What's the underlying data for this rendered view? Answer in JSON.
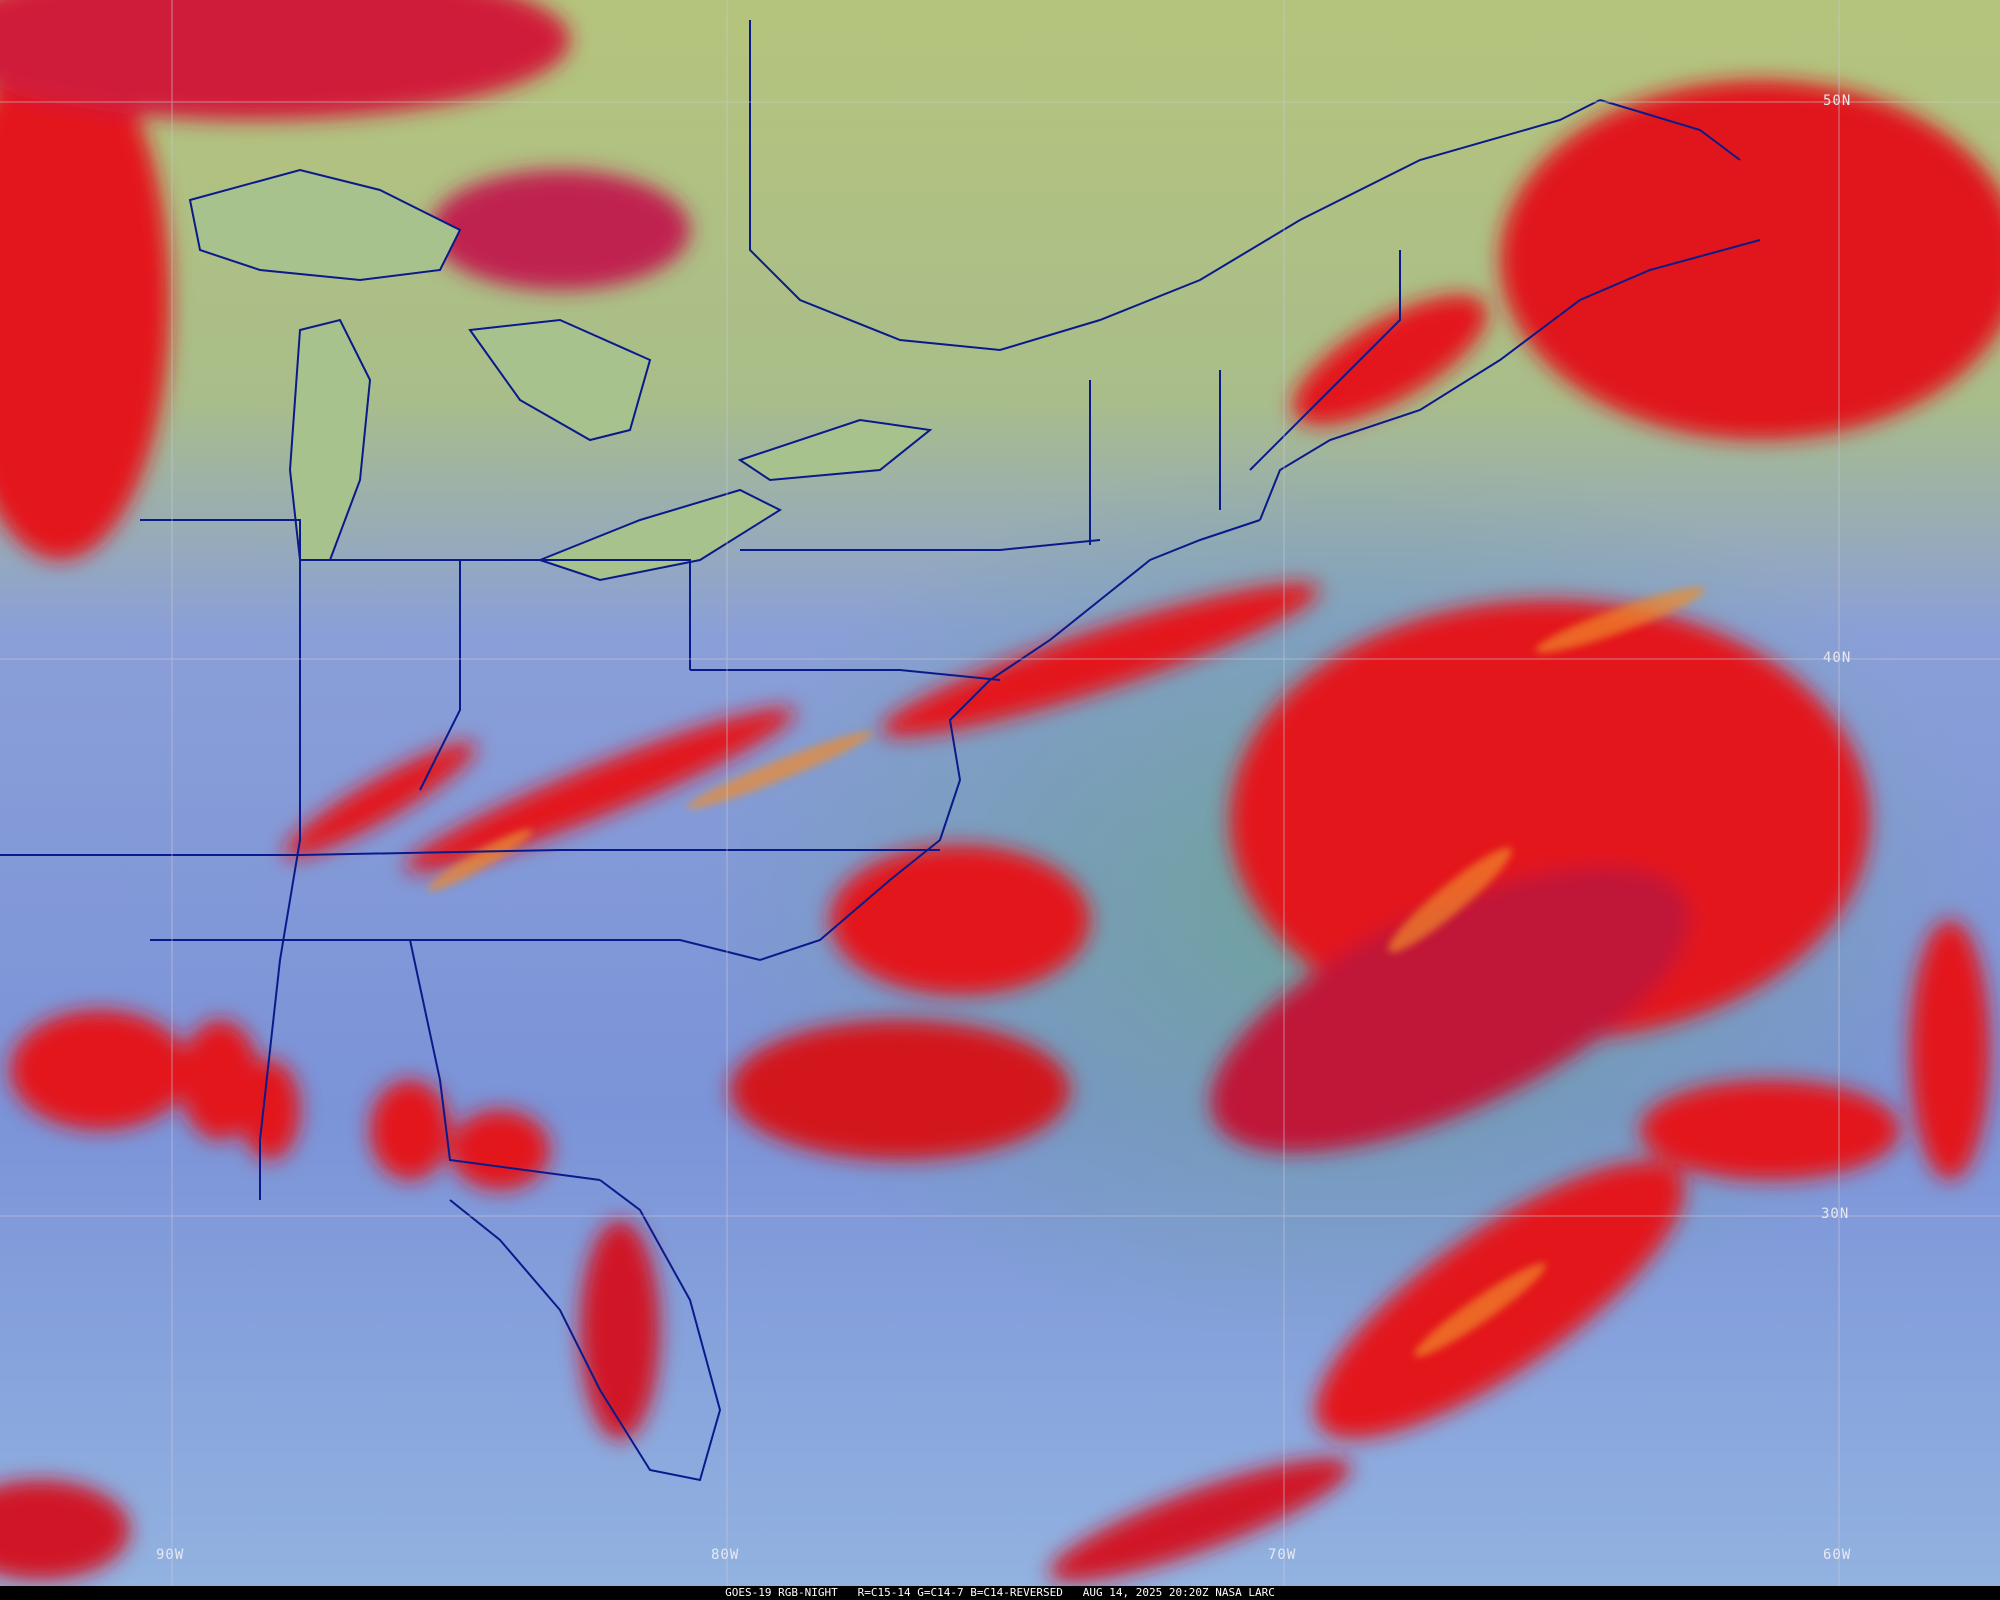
{
  "caption": "GOES-19 RGB-NIGHT   R=C15-14 G=C14-7 B=C14-REVERSED   AUG 14, 2025 20:20Z NASA LARC",
  "latitude_labels": [
    "50N",
    "40N",
    "30N"
  ],
  "longitude_labels": [
    "90W",
    "80W",
    "70W",
    "60W"
  ],
  "colors": {
    "cloud_red": "#e3141c",
    "cloud_orange": "#f08a2a",
    "clear_land_blue": "#6f86d6",
    "clear_ocean_blue": "#8fb0e2",
    "northern_yellow_green": "#b9c77e",
    "ocean_teal": "#6fa29a",
    "boundaries": "#0a1a8a",
    "grid": "#c8c8d8"
  }
}
